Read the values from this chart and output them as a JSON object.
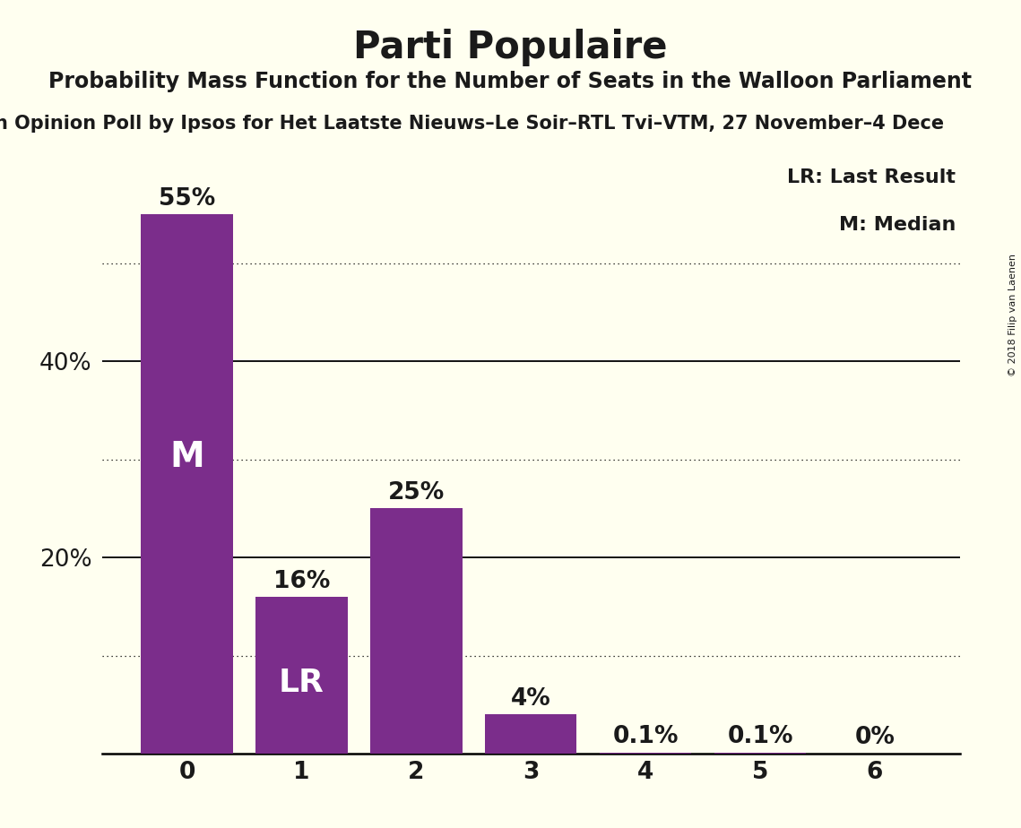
{
  "title": "Parti Populaire",
  "subtitle": "Probability Mass Function for the Number of Seats in the Walloon Parliament",
  "source_display": "n Opinion Poll by Ipsos for Het Laatste Nieuws–Le Soir–RTL Tvi–VTM, 27 November–4 Dece",
  "copyright": "© 2018 Filip van Laenen",
  "categories": [
    0,
    1,
    2,
    3,
    4,
    5,
    6
  ],
  "values": [
    55,
    16,
    25,
    4,
    0.1,
    0.1,
    0
  ],
  "bar_color": "#7B2D8B",
  "background_color": "#FFFFF0",
  "text_color": "#1a1a1a",
  "label_m_bar": 0,
  "label_lr_bar": 1,
  "yticks": [
    20,
    40
  ],
  "ylim": [
    0,
    60
  ],
  "solid_gridlines": [
    20,
    40
  ],
  "dotted_gridlines": [
    10,
    30,
    50
  ],
  "bar_labels": [
    "55%",
    "16%",
    "25%",
    "4%",
    "0.1%",
    "0.1%",
    "0%"
  ],
  "legend_text": [
    "LR: Last Result",
    "M: Median"
  ],
  "title_fontsize": 30,
  "subtitle_fontsize": 17,
  "source_fontsize": 15,
  "bar_label_fontsize": 19,
  "axis_tick_fontsize": 19,
  "inner_label_m_fontsize": 28,
  "inner_label_lr_fontsize": 26,
  "legend_fontsize": 16,
  "copyright_fontsize": 8
}
